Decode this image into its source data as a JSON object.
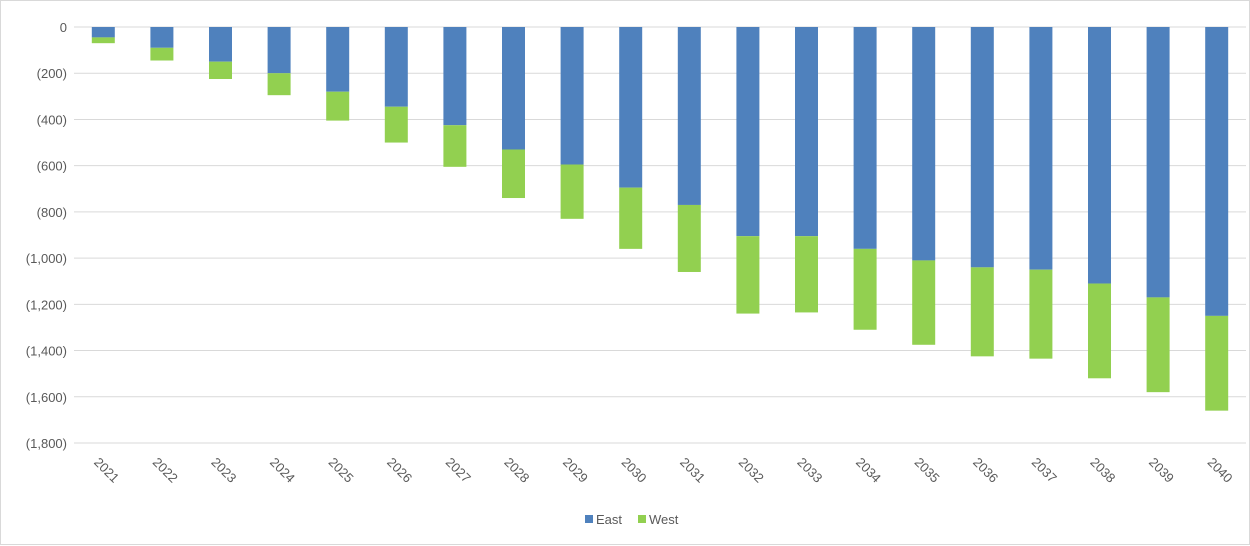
{
  "chart_data": {
    "type": "bar",
    "stacked": true,
    "categories": [
      "2021",
      "2022",
      "2023",
      "2024",
      "2025",
      "2026",
      "2027",
      "2028",
      "2029",
      "2030",
      "2031",
      "2032",
      "2033",
      "2034",
      "2035",
      "2036",
      "2037",
      "2038",
      "2039",
      "2040"
    ],
    "series": [
      {
        "name": "East",
        "color": "#4f81bd",
        "values": [
          -45,
          -90,
          -150,
          -200,
          -280,
          -345,
          -425,
          -530,
          -595,
          -695,
          -770,
          -905,
          -905,
          -960,
          -1010,
          -1040,
          -1050,
          -1110,
          -1170,
          -1250
        ]
      },
      {
        "name": "West",
        "color": "#92d050",
        "values": [
          -25,
          -55,
          -75,
          -95,
          -125,
          -155,
          -180,
          -210,
          -235,
          -265,
          -290,
          -335,
          -330,
          -350,
          -365,
          -385,
          -385,
          -410,
          -410,
          -410
        ]
      }
    ],
    "y_ticks": [
      "0",
      "(200)",
      "(400)",
      "(600)",
      "(800)",
      "(1,000)",
      "(1,200)",
      "(1,400)",
      "(1,600)",
      "(1,800)"
    ],
    "ylim": [
      -1800,
      0
    ],
    "grid": true,
    "gridline_color": "#d9d9d9",
    "legend_position": "bottom"
  }
}
